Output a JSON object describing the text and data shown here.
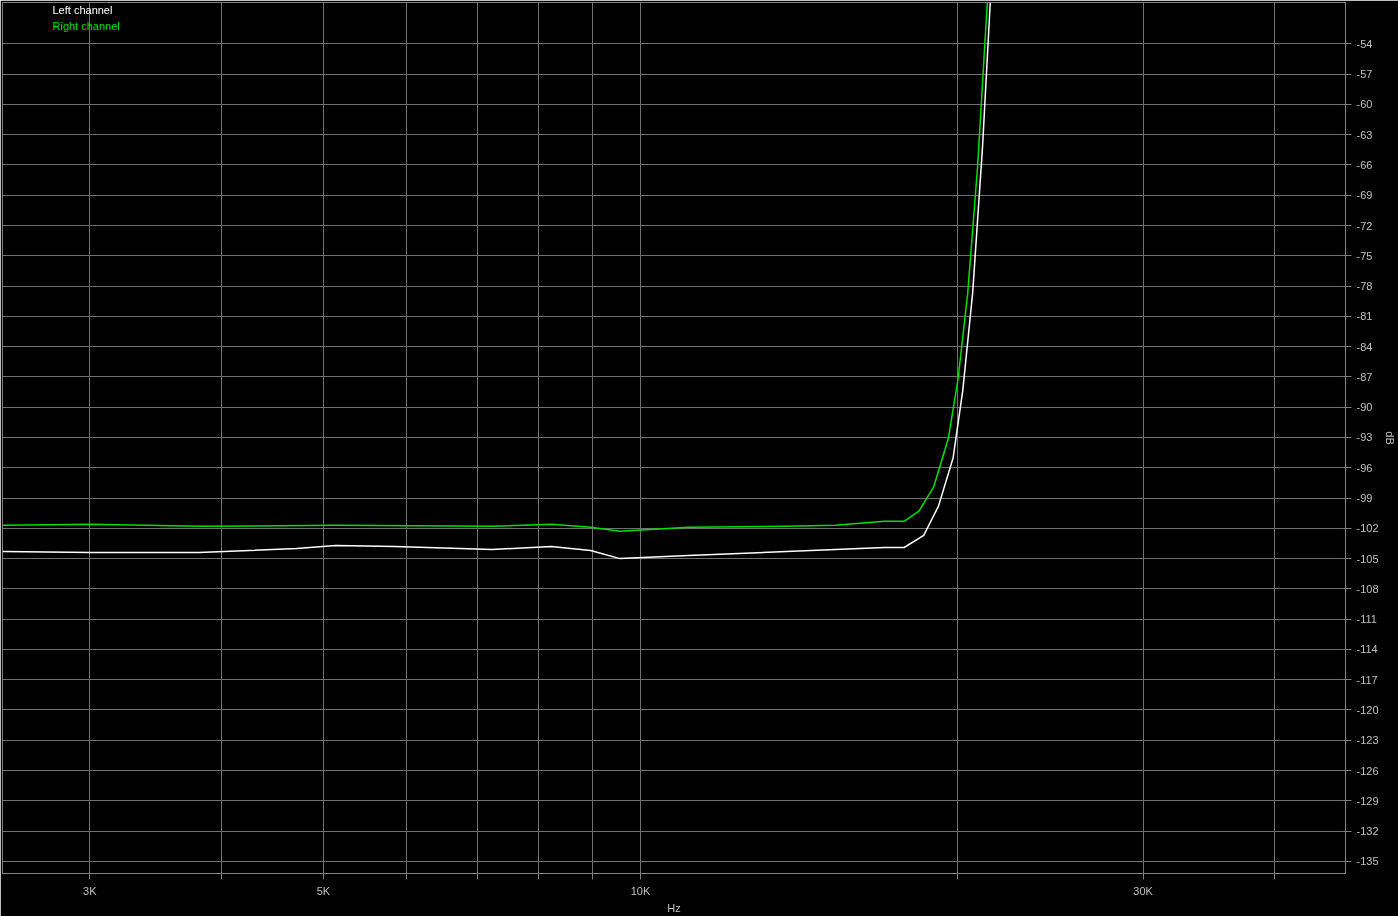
{
  "chart_data": {
    "type": "line",
    "xlabel": "Hz",
    "ylabel": "dB",
    "log": "x",
    "grid": true,
    "legend": "top left",
    "line_style": "solid",
    "marker": "none",
    "xlim": [
      2479,
      46700
    ],
    "ylim": [
      -136.2,
      -49.9
    ],
    "xticks": [
      {
        "value": 3000,
        "label": "3K"
      },
      {
        "value": 4000,
        "label": null
      },
      {
        "value": 5000,
        "label": "5K"
      },
      {
        "value": 6000,
        "label": null
      },
      {
        "value": 7000,
        "label": null
      },
      {
        "value": 8000,
        "label": null
      },
      {
        "value": 9000,
        "label": null
      },
      {
        "value": 10000,
        "label": "10K"
      },
      {
        "value": 20000,
        "label": null
      },
      {
        "value": 30000,
        "label": "30K"
      },
      {
        "value": 40000,
        "label": null
      }
    ],
    "yticks": [
      -54,
      -57,
      -60,
      -63,
      -66,
      -69,
      -72,
      -75,
      -78,
      -81,
      -84,
      -87,
      -90,
      -93,
      -96,
      -99,
      -102,
      -105,
      -108,
      -111,
      -114,
      -117,
      -120,
      -123,
      -126,
      -129,
      -132,
      -135
    ],
    "series": [
      {
        "name": "Left channel",
        "color": "#ffffff",
        "x": [
          2479,
          3008,
          3806,
          4716,
          5137,
          5842,
          7235,
          8228,
          8966,
          9560,
          11106,
          13755,
          15313,
          17046,
          17795,
          18573,
          19182,
          19807,
          20230,
          20669,
          21118,
          21481
        ],
        "values": [
          -104.3,
          -104.4,
          -104.4,
          -104.0,
          -103.7,
          -103.8,
          -104.1,
          -103.8,
          -104.2,
          -105.0,
          -104.7,
          -104.3,
          -104.1,
          -103.9,
          -103.9,
          -102.7,
          -99.8,
          -95.0,
          -88.3,
          -78.7,
          -64.3,
          -49.9
        ]
      },
      {
        "name": "Right channel",
        "color": "#00e000",
        "x": [
          2479,
          3008,
          3806,
          5137,
          7235,
          8228,
          8966,
          9560,
          11106,
          13755,
          15313,
          17046,
          17795,
          18380,
          18983,
          19598,
          20015,
          20448,
          20893,
          21342
        ],
        "values": [
          -101.7,
          -101.6,
          -101.8,
          -101.7,
          -101.8,
          -101.6,
          -101.9,
          -102.3,
          -101.9,
          -101.8,
          -101.7,
          -101.3,
          -101.3,
          -100.3,
          -97.9,
          -93.1,
          -87.3,
          -78.7,
          -66.2,
          -49.9
        ]
      }
    ]
  }
}
